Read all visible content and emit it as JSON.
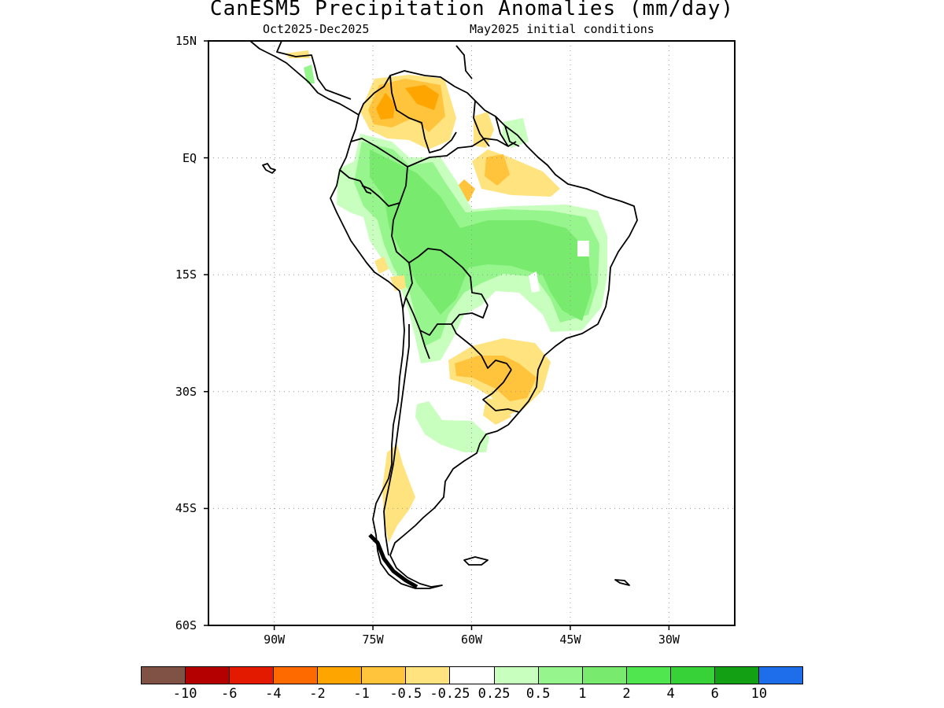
{
  "title": "CanESM5 Precipitation Anomalies (mm/day)",
  "subtitle_left": "Oct2025-Dec2025",
  "subtitle_right": "May2025 initial conditions",
  "map": {
    "region": "South America",
    "lat_range": [
      -60,
      15
    ],
    "lon_range": [
      -100,
      -20
    ],
    "lat_labels": [
      "15N",
      "EQ",
      "15S",
      "30S",
      "45S",
      "60S"
    ],
    "lon_labels": [
      "90W",
      "75W",
      "60W",
      "45W",
      "30W"
    ],
    "grid": "dotted"
  },
  "colorbar": {
    "colors": [
      "#7f5245",
      "#b50000",
      "#e31a00",
      "#ff6a00",
      "#ffa500",
      "#ffc33c",
      "#ffe37f",
      "#ffffff",
      "#c8ffbe",
      "#96f58c",
      "#78eb6e",
      "#50e650",
      "#37d237",
      "#14a014",
      "#1e6eeb"
    ],
    "labels": [
      "-10",
      "-6",
      "-4",
      "-2",
      "-1",
      "-0.5",
      "-0.25",
      "0.25",
      "0.5",
      "1",
      "2",
      "4",
      "6",
      "10"
    ]
  }
}
